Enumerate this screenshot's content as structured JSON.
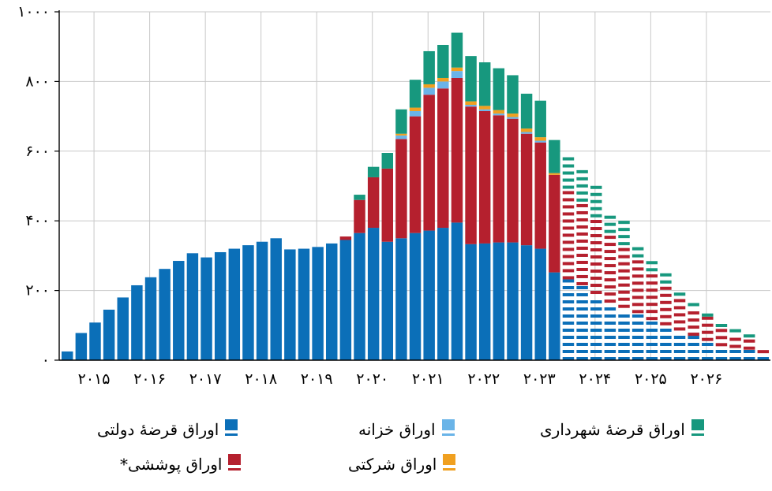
{
  "chart_data": {
    "type": "bar",
    "stacked": true,
    "ylim": [
      0,
      1000
    ],
    "yticks": [
      "۰",
      "۲۰۰",
      "۴۰۰",
      "۶۰۰",
      "۸۰۰",
      "۱۰۰۰"
    ],
    "xticks": [
      "۲۰۱۵",
      "۲۰۱۶",
      "۲۰۱۷",
      "۲۰۱۸",
      "۲۰۱۹",
      "۲۰۲۰",
      "۲۰۲۱",
      "۲۰۲۲",
      "۲۰۲۳",
      "۲۰۲۴",
      "۲۰۲۵",
      "۲۰۲۶"
    ],
    "grid": true,
    "legend_position": "bottom",
    "projection_start_index": 36,
    "series": [
      {
        "name": "اوراق قرضهٔ دولتی",
        "color": "#0b6fb8",
        "values": [
          25,
          78,
          108,
          145,
          180,
          215,
          238,
          262,
          285,
          307,
          295,
          310,
          320,
          330,
          340,
          350,
          318,
          320,
          325,
          335,
          345,
          365,
          380,
          340,
          350,
          365,
          372,
          380,
          395,
          333,
          335,
          338,
          338,
          330,
          320,
          252,
          232,
          215,
          190,
          165,
          150,
          135,
          115,
          100,
          85,
          70,
          55,
          40,
          35,
          30,
          20
        ]
      },
      {
        "name": "اوراق پوششی*",
        "color": "#b5202e",
        "values": [
          0,
          0,
          0,
          0,
          0,
          0,
          0,
          0,
          0,
          0,
          0,
          0,
          0,
          0,
          0,
          0,
          0,
          0,
          0,
          0,
          10,
          95,
          145,
          210,
          285,
          335,
          390,
          400,
          415,
          395,
          380,
          365,
          355,
          320,
          305,
          280,
          260,
          240,
          220,
          200,
          180,
          160,
          140,
          120,
          100,
          85,
          70,
          55,
          45,
          35,
          20
        ]
      },
      {
        "name": "اوراق خزانه",
        "color": "#6ab4e8",
        "values": [
          0,
          0,
          0,
          0,
          0,
          0,
          0,
          0,
          0,
          0,
          0,
          0,
          0,
          0,
          0,
          0,
          0,
          0,
          0,
          0,
          0,
          0,
          0,
          0,
          10,
          15,
          20,
          20,
          20,
          5,
          5,
          5,
          5,
          5,
          5,
          0,
          0,
          0,
          0,
          0,
          0,
          0,
          0,
          0,
          0,
          0,
          0,
          0,
          0,
          0,
          0
        ]
      },
      {
        "name": "اوراق شرکتی",
        "color": "#f0a020",
        "values": [
          0,
          0,
          0,
          0,
          0,
          0,
          0,
          0,
          0,
          0,
          0,
          0,
          0,
          0,
          0,
          0,
          0,
          0,
          0,
          0,
          0,
          0,
          0,
          0,
          5,
          10,
          10,
          10,
          10,
          10,
          10,
          10,
          10,
          10,
          10,
          5,
          0,
          0,
          0,
          0,
          0,
          0,
          0,
          0,
          0,
          0,
          0,
          0,
          0,
          0,
          0
        ]
      },
      {
        "name": "اوراق قرضهٔ شهرداری",
        "color": "#17987e",
        "values": [
          0,
          0,
          0,
          0,
          0,
          0,
          0,
          0,
          0,
          0,
          0,
          0,
          0,
          0,
          0,
          0,
          0,
          0,
          0,
          0,
          0,
          15,
          30,
          45,
          70,
          80,
          95,
          95,
          100,
          130,
          125,
          120,
          110,
          100,
          105,
          95,
          95,
          100,
          100,
          65,
          75,
          40,
          35,
          30,
          25,
          15,
          10,
          10,
          10,
          10,
          0
        ]
      }
    ]
  },
  "legend": [
    {
      "label": "اوراق قرضهٔ دولتی",
      "color": "#0b6fb8"
    },
    {
      "label": "اوراق خزانه",
      "color": "#6ab4e8"
    },
    {
      "label": "اوراق قرضهٔ شهرداری",
      "color": "#17987e"
    },
    {
      "label": "اوراق پوششی*",
      "color": "#b5202e"
    },
    {
      "label": "اوراق شرکتی",
      "color": "#f0a020"
    }
  ]
}
